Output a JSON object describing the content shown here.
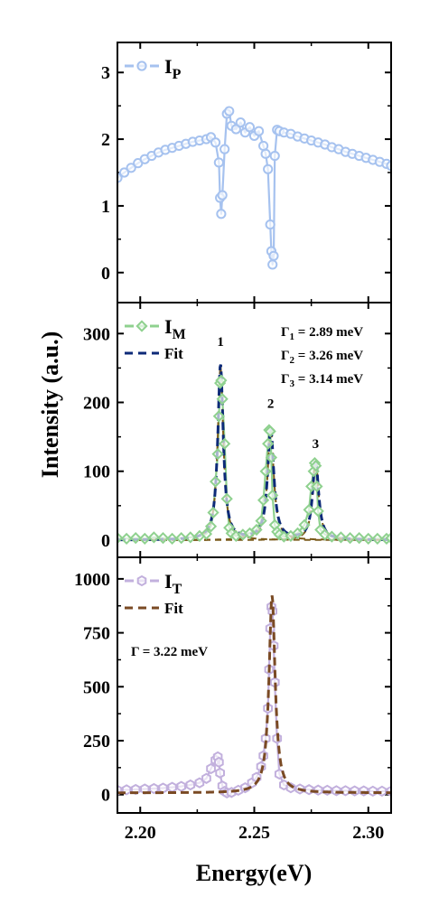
{
  "figure": {
    "y_axis_title": "Intensity (a.u.)",
    "x_axis_title": "Energy(eV)",
    "x_ticks": [
      "2.20",
      "2.25",
      "2.30"
    ],
    "colors": {
      "P": "#a6c2ef",
      "M": "#8fd18f",
      "T": "#c2b0dd",
      "fit_M": "#0d2a78",
      "fit_T": "#7a4a24",
      "fit_M_peak": "#7a5a1a"
    }
  },
  "chart_data": [
    {
      "id": "P",
      "type": "line",
      "xlim": [
        2.19,
        2.31
      ],
      "ylim": [
        -0.45,
        3.45
      ],
      "yticks": [
        "0",
        "1",
        "2",
        "3"
      ],
      "grid": false,
      "legend": {
        "placement": "top-left",
        "entries": [
          {
            "main": "I",
            "sub": "P",
            "style": "line-circle-marker"
          }
        ]
      },
      "series": [
        {
          "name": "IP",
          "marker": "circle",
          "x": [
            2.19,
            2.193,
            2.196,
            2.199,
            2.202,
            2.205,
            2.208,
            2.211,
            2.214,
            2.217,
            2.22,
            2.223,
            2.226,
            2.229,
            2.231,
            2.233,
            2.2345,
            2.235,
            2.2355,
            2.236,
            2.237,
            2.238,
            2.239,
            2.24,
            2.242,
            2.244,
            2.246,
            2.248,
            2.25,
            2.252,
            2.254,
            2.255,
            2.256,
            2.257,
            2.2575,
            2.258,
            2.2585,
            2.259,
            2.26,
            2.261,
            2.263,
            2.266,
            2.269,
            2.272,
            2.275,
            2.278,
            2.281,
            2.284,
            2.287,
            2.29,
            2.293,
            2.296,
            2.299,
            2.302,
            2.305,
            2.308,
            2.31
          ],
          "y": [
            1.42,
            1.5,
            1.57,
            1.64,
            1.7,
            1.75,
            1.8,
            1.84,
            1.87,
            1.9,
            1.93,
            1.96,
            1.98,
            2.0,
            2.03,
            1.95,
            1.65,
            1.12,
            0.88,
            1.16,
            1.85,
            2.38,
            2.42,
            2.2,
            2.15,
            2.25,
            2.1,
            2.18,
            2.05,
            2.12,
            1.9,
            1.78,
            1.55,
            0.72,
            0.32,
            0.12,
            0.25,
            1.75,
            2.14,
            2.12,
            2.1,
            2.08,
            2.04,
            2.01,
            1.98,
            1.95,
            1.92,
            1.88,
            1.85,
            1.81,
            1.78,
            1.75,
            1.72,
            1.69,
            1.66,
            1.63,
            1.6
          ]
        }
      ]
    },
    {
      "id": "M",
      "type": "line",
      "xlim": [
        2.19,
        2.31
      ],
      "ylim": [
        -25,
        345
      ],
      "yticks": [
        "0",
        "100",
        "200",
        "300"
      ],
      "grid": false,
      "legend": {
        "placement": "top-left",
        "entries": [
          {
            "main": "I",
            "sub": "M",
            "style": "line-diamond-marker"
          },
          {
            "main": "Fit",
            "sub": "",
            "style": "dashed-line"
          }
        ]
      },
      "annotations": [
        {
          "sym": "Γ",
          "sub": "1",
          "value": " = 2.89 meV"
        },
        {
          "sym": "Γ",
          "sub": "2",
          "value": " = 3.26 meV"
        },
        {
          "sym": "Γ",
          "sub": "3",
          "value": " = 3.14 meV"
        }
      ],
      "peak_labels": [
        {
          "text": "1",
          "x": 2.2352,
          "y": 282
        },
        {
          "text": "2",
          "x": 2.2572,
          "y": 192
        },
        {
          "text": "3",
          "x": 2.2769,
          "y": 134
        }
      ],
      "peaks": [
        {
          "center": 2.2352,
          "gamma_meV": 2.89,
          "height": 255
        },
        {
          "center": 2.2572,
          "gamma_meV": 3.26,
          "height": 162
        },
        {
          "center": 2.2769,
          "gamma_meV": 3.14,
          "height": 116
        }
      ],
      "series": [
        {
          "name": "IM",
          "marker": "diamond",
          "x": [
            2.19,
            2.194,
            2.198,
            2.202,
            2.206,
            2.21,
            2.214,
            2.218,
            2.222,
            2.226,
            2.229,
            2.231,
            2.232,
            2.233,
            2.234,
            2.2345,
            2.235,
            2.2355,
            2.236,
            2.237,
            2.238,
            2.239,
            2.24,
            2.242,
            2.245,
            2.248,
            2.251,
            2.253,
            2.254,
            2.255,
            2.256,
            2.2565,
            2.257,
            2.2575,
            2.258,
            2.259,
            2.26,
            2.261,
            2.263,
            2.266,
            2.269,
            2.272,
            2.274,
            2.275,
            2.276,
            2.2765,
            2.277,
            2.2775,
            2.278,
            2.279,
            2.281,
            2.284,
            2.288,
            2.292,
            2.296,
            2.3,
            2.304,
            2.308,
            2.31
          ],
          "y": [
            3,
            2,
            3,
            2,
            4,
            3,
            2,
            3,
            4,
            6,
            9,
            20,
            40,
            85,
            125,
            180,
            228,
            232,
            205,
            140,
            60,
            18,
            10,
            6,
            8,
            10,
            15,
            28,
            58,
            100,
            140,
            160,
            158,
            120,
            65,
            22,
            12,
            8,
            5,
            6,
            10,
            22,
            44,
            78,
            100,
            112,
            108,
            78,
            42,
            15,
            8,
            5,
            4,
            3,
            3,
            2,
            2,
            2,
            3
          ]
        }
      ]
    },
    {
      "id": "T",
      "type": "line",
      "xlim": [
        2.19,
        2.31
      ],
      "ylim": [
        -85,
        1100
      ],
      "yticks": [
        "0",
        "250",
        "500",
        "750",
        "1000"
      ],
      "grid": false,
      "legend": {
        "placement": "top-left",
        "entries": [
          {
            "main": "I",
            "sub": "T",
            "style": "line-hexagon-marker"
          },
          {
            "main": "Fit",
            "sub": "",
            "style": "dashed-line"
          }
        ]
      },
      "annotations": [
        {
          "sym": "Γ",
          "sub": "",
          "value": " = 3.22 meV"
        }
      ],
      "fit": {
        "center": 2.2578,
        "gamma_meV": 3.22,
        "height": 915,
        "baseline": 8,
        "slope_start": 2.2
      },
      "series": [
        {
          "name": "IT",
          "marker": "hexagon",
          "x": [
            2.19,
            2.194,
            2.198,
            2.202,
            2.206,
            2.21,
            2.214,
            2.218,
            2.222,
            2.226,
            2.229,
            2.231,
            2.233,
            2.234,
            2.2345,
            2.235,
            2.236,
            2.237,
            2.238,
            2.24,
            2.243,
            2.246,
            2.249,
            2.251,
            2.253,
            2.254,
            2.255,
            2.256,
            2.2565,
            2.257,
            2.2575,
            2.258,
            2.2585,
            2.259,
            2.26,
            2.261,
            2.263,
            2.266,
            2.27,
            2.274,
            2.278,
            2.282,
            2.286,
            2.29,
            2.294,
            2.298,
            2.302,
            2.306,
            2.31
          ],
          "y": [
            20,
            22,
            24,
            26,
            28,
            30,
            34,
            38,
            45,
            55,
            75,
            120,
            160,
            175,
            150,
            100,
            40,
            15,
            8,
            10,
            20,
            32,
            55,
            80,
            130,
            180,
            260,
            400,
            580,
            770,
            870,
            850,
            690,
            520,
            260,
            95,
            45,
            32,
            26,
            23,
            21,
            20,
            18,
            18,
            17,
            17,
            16,
            16,
            16
          ]
        }
      ]
    }
  ]
}
